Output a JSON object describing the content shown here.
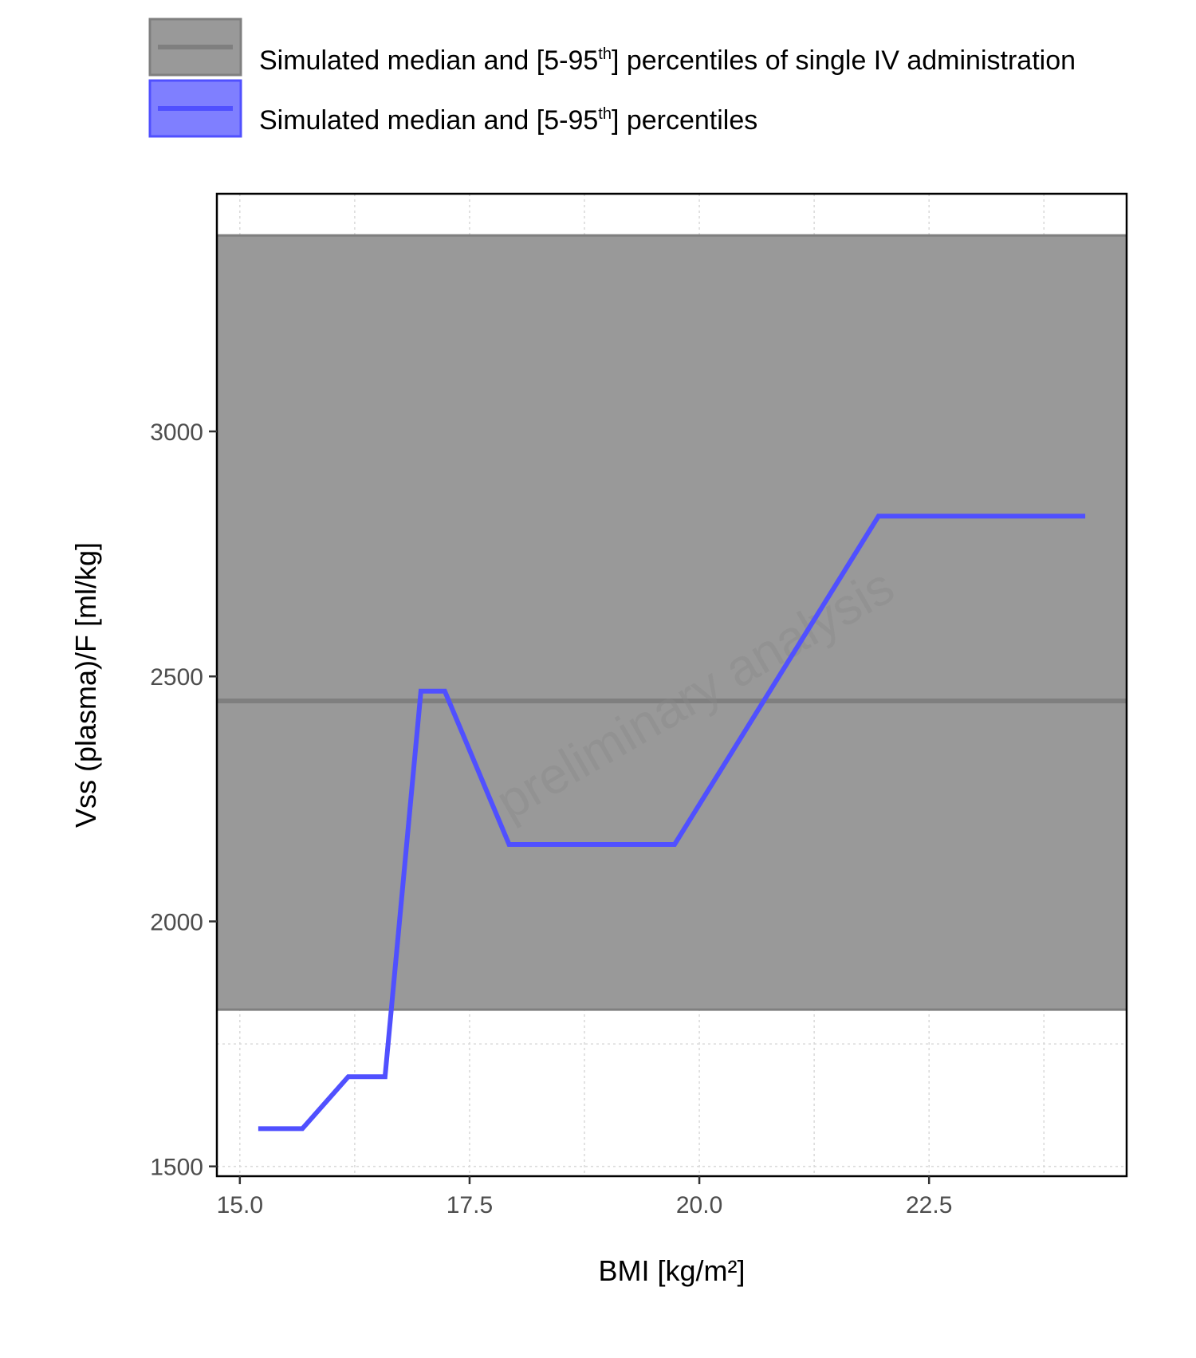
{
  "chart_data": {
    "type": "line",
    "xlabel": "BMI [kg/m²]",
    "ylabel": "Vss (plasma)/F [ml/kg]",
    "xlim": [
      14.75,
      24.65
    ],
    "ylim": [
      1480,
      3485
    ],
    "x_ticks": [
      15.0,
      17.5,
      20.0,
      22.5
    ],
    "x_tick_labels": [
      "15.0",
      "17.5",
      "20.0",
      "22.5"
    ],
    "y_ticks": [
      1500,
      2000,
      2500,
      3000
    ],
    "y_tick_labels": [
      "1500",
      "2000",
      "2500",
      "3000"
    ],
    "grid": true,
    "legend_position": "top",
    "watermark": "preliminary analysis",
    "reference_band": {
      "name_prefix": "Simulated median and [5-95",
      "name_sup": "th",
      "name_suffix": "] percentiles of single IV administration",
      "median": 2450,
      "lower": 1820,
      "upper": 3400,
      "color": "#999999",
      "line_color": "#7f7f7f"
    },
    "series": [
      {
        "name_prefix": "Simulated median and [5-95",
        "name_sup": "th",
        "name_suffix": "] percentiles",
        "color": "#5050ff",
        "x": [
          15.2,
          15.68,
          16.18,
          16.58,
          16.97,
          17.23,
          17.93,
          19.73,
          21.95,
          24.2
        ],
        "y": [
          1577,
          1577,
          1683,
          1683,
          2470,
          2470,
          2157,
          2157,
          2827,
          2827
        ]
      }
    ]
  }
}
